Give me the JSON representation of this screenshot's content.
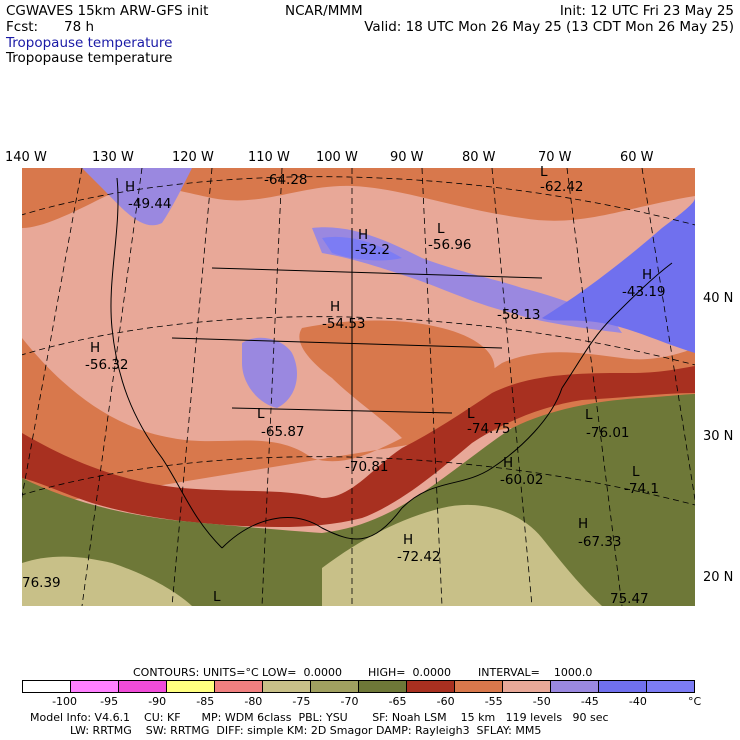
{
  "header": {
    "model_title": "CGWAVES 15km ARW-GFS init",
    "forecast_label": "Fcst:",
    "forecast_hours": "78 h",
    "field_name_1": "Tropopause temperature",
    "field_name_2": "Tropopause temperature",
    "center": "NCAR/MMM",
    "init": "Init: 12 UTC Fri 23 May 25",
    "valid": "Valid: 18 UTC Mon 26 May 25 (13 CDT Mon 26 May 25)"
  },
  "map": {
    "longitude_labels": [
      "140 W",
      "130 W",
      "120 W",
      "110 W",
      "100 W",
      "90 W",
      "80 W",
      "70 W",
      "60 W"
    ],
    "latitude_labels": [
      "40 N",
      "30 N",
      "20 N"
    ],
    "extrema": [
      {
        "type": "H",
        "value": "-49.44"
      },
      {
        "type": "",
        "value": "-64.28"
      },
      {
        "type": "L",
        "value": "-62.42"
      },
      {
        "type": "H",
        "value": "-52.2"
      },
      {
        "type": "L",
        "value": "-56.96"
      },
      {
        "type": "H",
        "value": "-43.19"
      },
      {
        "type": "H",
        "value": "-54.53"
      },
      {
        "type": "",
        "value": "-58.13"
      },
      {
        "type": "H",
        "value": "-56.32"
      },
      {
        "type": "L",
        "value": "-65.87"
      },
      {
        "type": "L",
        "value": "-74.75"
      },
      {
        "type": "L",
        "value": "-76.01"
      },
      {
        "type": "",
        "value": "-70.81"
      },
      {
        "type": "H",
        "value": "-60.02"
      },
      {
        "type": "L",
        "value": "-74.1"
      },
      {
        "type": "H",
        "value": "-67.33"
      },
      {
        "type": "H",
        "value": "-72.42"
      },
      {
        "type": "",
        "value": "76.39"
      },
      {
        "type": "L",
        "value": ""
      },
      {
        "type": "",
        "value": "75.47"
      }
    ]
  },
  "contours": {
    "label": "CONTOURS:",
    "units": "UNITS=°C",
    "low": "LOW=  0.0000",
    "high": "HIGH=  0.0000",
    "interval": "INTERVAL=    1000.0"
  },
  "color_scale": {
    "colors": [
      "#ffffff",
      "#ff80ff",
      "#f04cd8",
      "#ffff80",
      "#f08080",
      "#c8c088",
      "#a0a060",
      "#6e7838",
      "#a83020",
      "#d8784c",
      "#e8a898",
      "#9a88e0",
      "#7070ee",
      "#7c7cf4"
    ],
    "labels": [
      "-100",
      "-95",
      "-90",
      "-85",
      "-80",
      "-75",
      "-70",
      "-65",
      "-60",
      "-55",
      "-50",
      "-45",
      "-40"
    ],
    "unit": "°C"
  },
  "footer": {
    "line1": "Model Info: V4.6.1    CU: KF      MP: WDM 6class  PBL: YSU       SF: Noah LSM    15 km   119 levels   90 sec",
    "line2": "LW: RRTMG    SW: RRTMG  DIFF: simple KM: 2D Smagor DAMP: Rayleigh3  SFLAY: MM5"
  }
}
